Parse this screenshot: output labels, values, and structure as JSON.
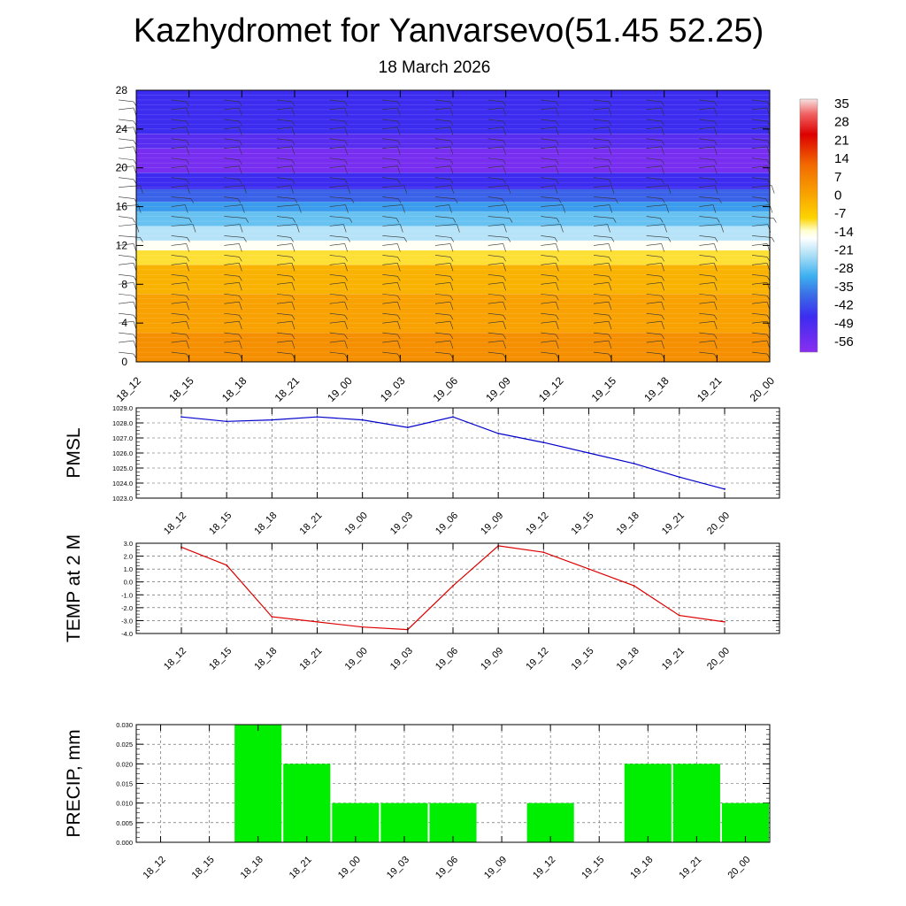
{
  "title": "Kazhydromet for Yanvarsevo(51.45 52.25)",
  "subtitle": "18 March 2026",
  "chart_data": [
    {
      "type": "heatmap",
      "name": "temperature-cross-section",
      "x_labels": [
        "18_12",
        "18_15",
        "18_18",
        "18_21",
        "19_00",
        "19_03",
        "19_06",
        "19_09",
        "19_12",
        "19_15",
        "19_18",
        "19_21",
        "20_00"
      ],
      "y_ticks": [
        0,
        4,
        8,
        12,
        16,
        20,
        24,
        28
      ],
      "ylim": [
        0,
        28
      ],
      "colorbar_labels": [
        "35",
        "28",
        "21",
        "14",
        "7",
        "0",
        "-7",
        "-14",
        "-21",
        "-28",
        "-35",
        "-42",
        "-49",
        "-56"
      ],
      "bands": [
        {
          "from": 0,
          "to": 3,
          "value": 3
        },
        {
          "from": 3,
          "to": 7,
          "value": 1
        },
        {
          "from": 7,
          "to": 10,
          "value": -1
        },
        {
          "from": 10,
          "to": 11.5,
          "value": -6
        },
        {
          "from": 11.5,
          "to": 12.5,
          "value": -13
        },
        {
          "from": 12.5,
          "to": 14,
          "value": -19
        },
        {
          "from": 14,
          "to": 15.5,
          "value": -26
        },
        {
          "from": 15.5,
          "to": 16.5,
          "value": -34
        },
        {
          "from": 16.5,
          "to": 17.8,
          "value": -44
        },
        {
          "from": 17.8,
          "to": 19.5,
          "value": -52
        },
        {
          "from": 19.5,
          "to": 22,
          "value": -58
        },
        {
          "from": 22,
          "to": 23.5,
          "value": -55
        },
        {
          "from": 23.5,
          "to": 28,
          "value": -52
        }
      ]
    },
    {
      "type": "line",
      "name": "pmsl",
      "ylabel": "PMSL",
      "ylim": [
        1023.0,
        1029.0
      ],
      "y_ticks": [
        "1023.0",
        "1024.0",
        "1025.0",
        "1026.0",
        "1027.0",
        "1028.0",
        "1029.0"
      ],
      "x_labels": [
        "18_12",
        "18_15",
        "18_18",
        "18_21",
        "19_00",
        "19_03",
        "19_06",
        "19_09",
        "19_12",
        "19_15",
        "19_18",
        "19_21",
        "20_00"
      ],
      "values": [
        1028.4,
        1028.1,
        1028.2,
        1028.4,
        1028.2,
        1027.7,
        1028.4,
        1027.3,
        1026.7,
        1026.0,
        1025.3,
        1024.4,
        1023.6
      ],
      "color": "#0000cc"
    },
    {
      "type": "line",
      "name": "temp",
      "ylabel": "TEMP at 2 M",
      "ylim": [
        -4.0,
        3.0
      ],
      "y_ticks": [
        "-4.0",
        "-3.0",
        "-2.0",
        "-1.0",
        "0.0",
        "1.0",
        "2.0",
        "3.0"
      ],
      "x_labels": [
        "18_12",
        "18_15",
        "18_18",
        "18_21",
        "19_00",
        "19_03",
        "19_06",
        "19_09",
        "19_12",
        "19_15",
        "19_18",
        "19_21",
        "20_00"
      ],
      "values": [
        2.7,
        1.3,
        -2.7,
        -3.1,
        -3.5,
        -3.7,
        -0.3,
        2.8,
        2.3,
        1.0,
        -0.3,
        -2.6,
        -3.1
      ],
      "color": "#dd0000"
    },
    {
      "type": "bar",
      "name": "precip",
      "ylabel": "PRECIP, mm",
      "ylim": [
        0,
        0.03
      ],
      "y_ticks": [
        "0.000",
        "0.005",
        "0.010",
        "0.015",
        "0.020",
        "0.025",
        "0.030"
      ],
      "categories": [
        "18_12",
        "18_15",
        "18_18",
        "18_21",
        "19_00",
        "19_03",
        "19_06",
        "19_09",
        "19_12",
        "19_15",
        "19_18",
        "19_21",
        "20_00"
      ],
      "values": [
        0,
        0,
        0.03,
        0.02,
        0.01,
        0.01,
        0.01,
        0,
        0.01,
        0,
        0.02,
        0.02,
        0.01
      ],
      "color": "#00ee00"
    }
  ]
}
